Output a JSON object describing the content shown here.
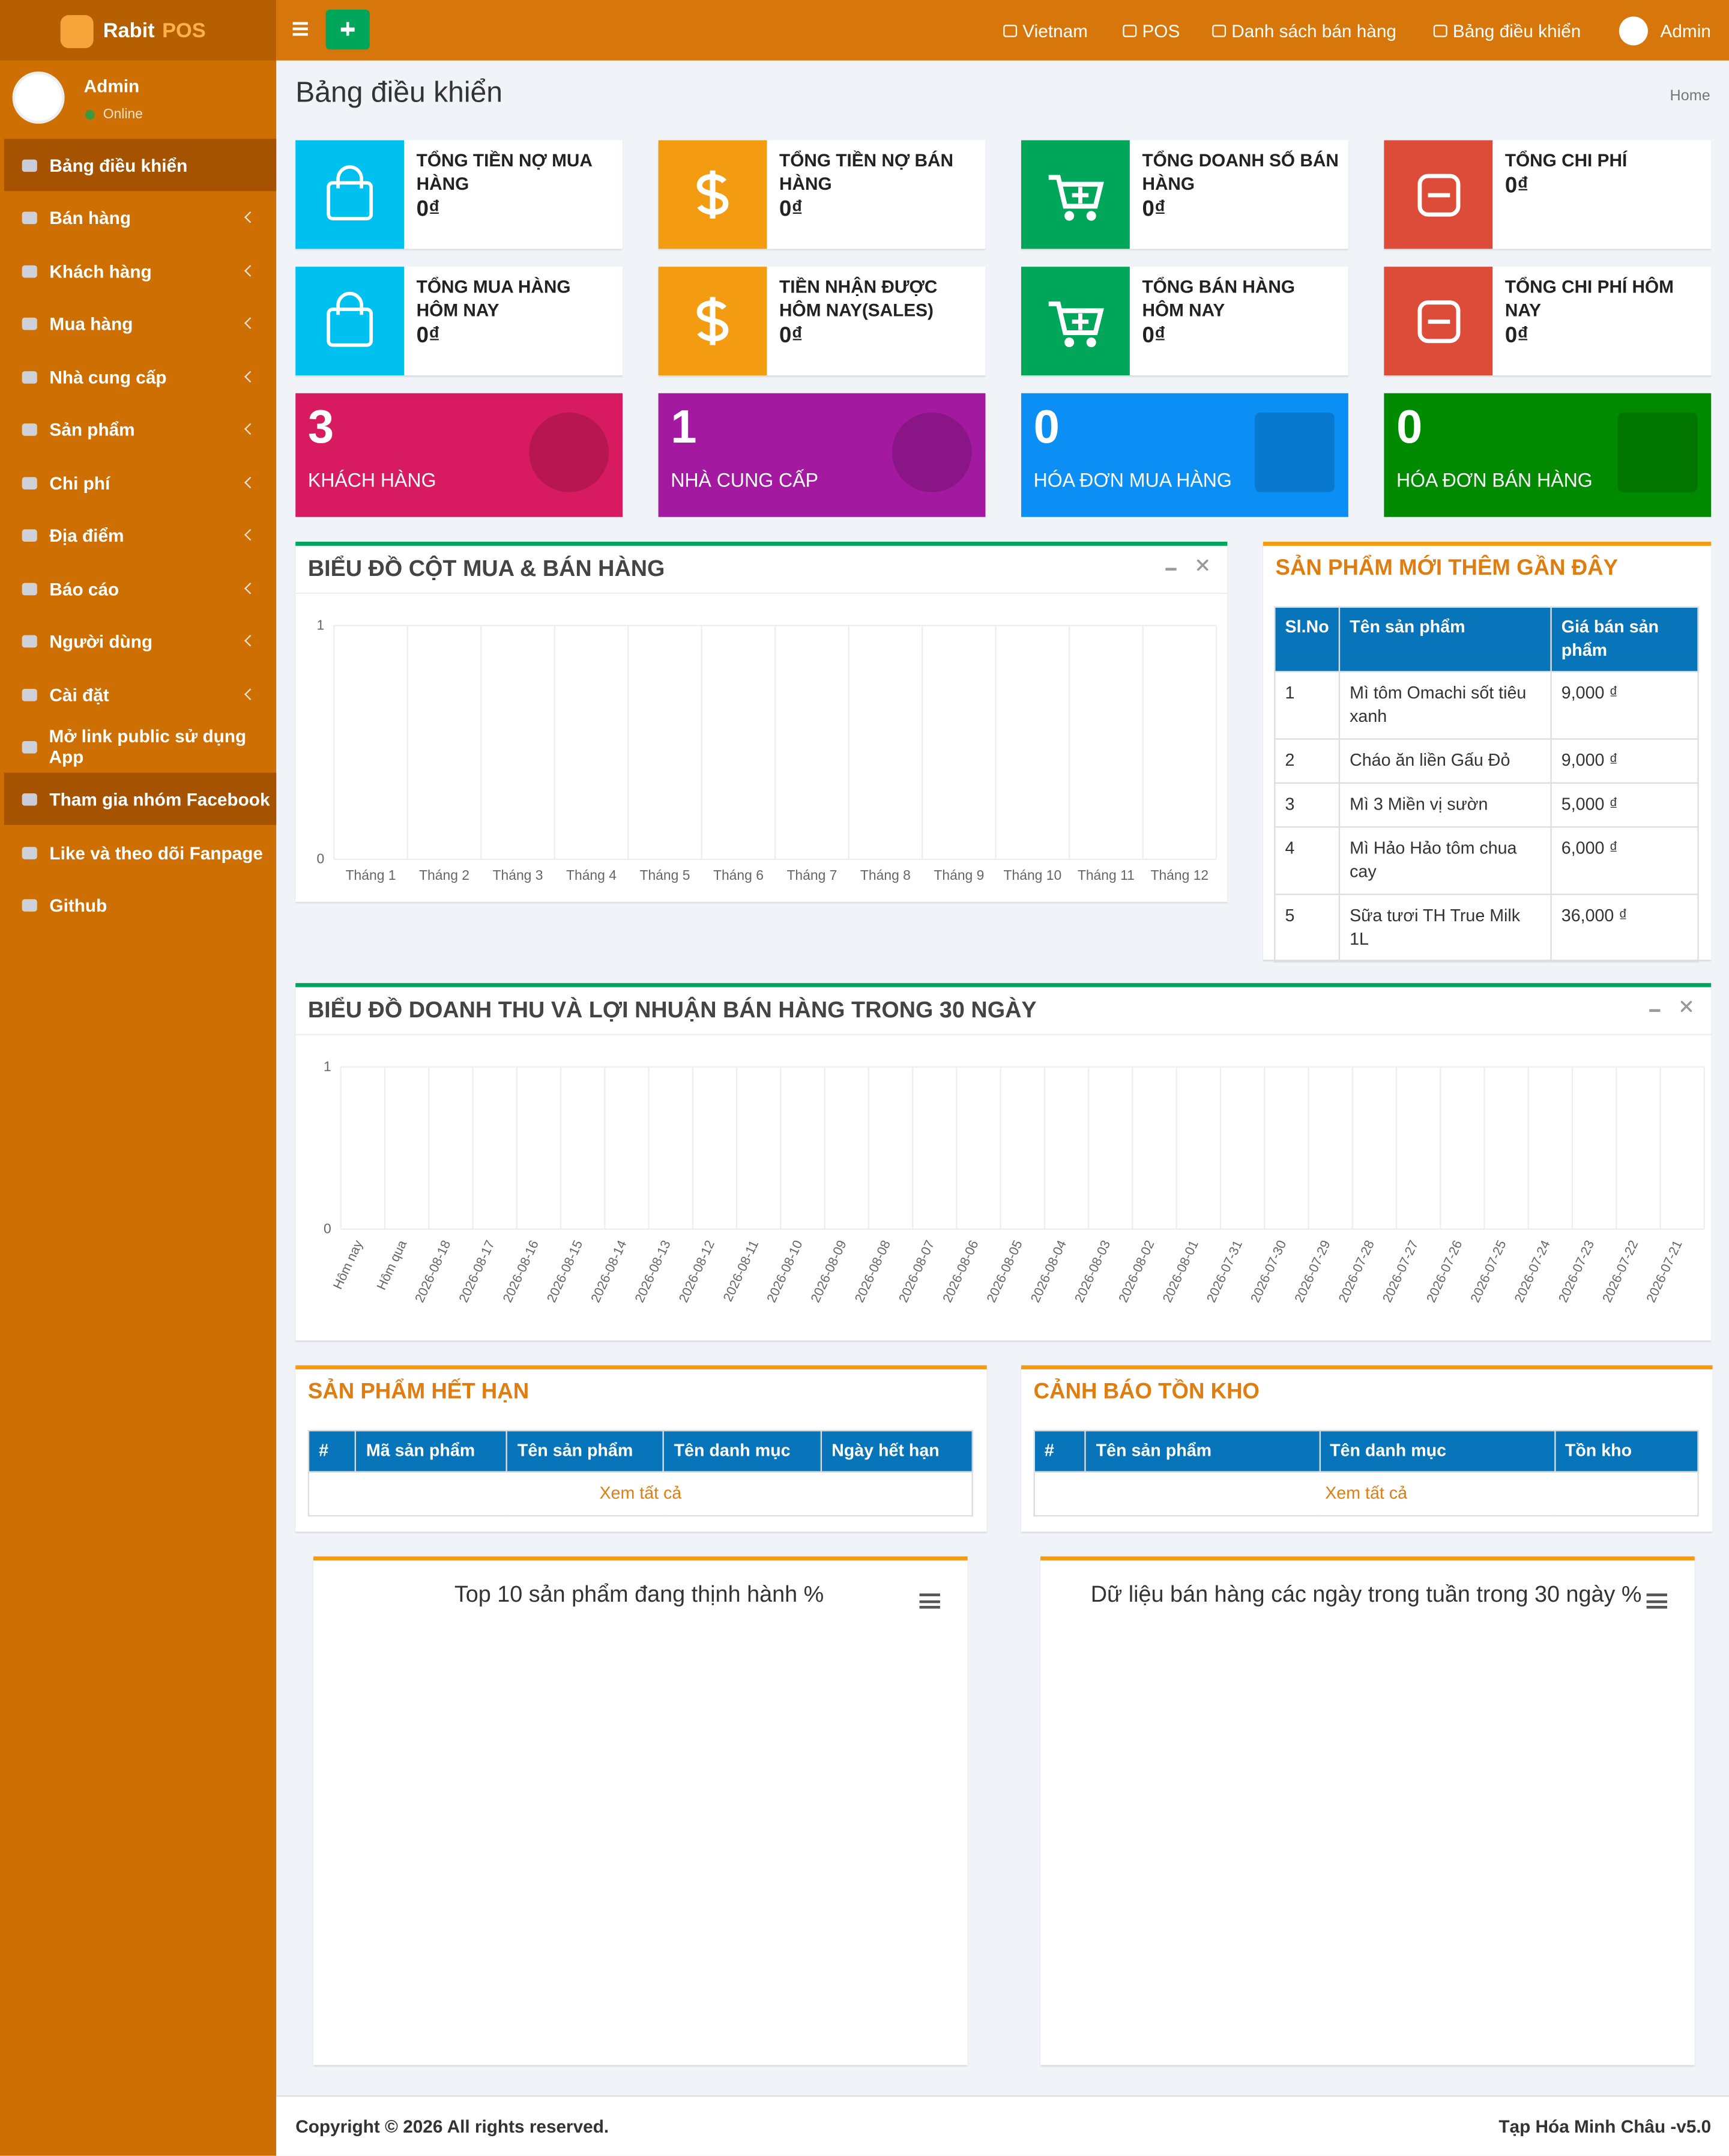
{
  "brand": {
    "name": "Rabit",
    "suffix": "POS"
  },
  "topbar": [
    "Vietnam",
    "POS",
    "Danh sách bán hàng",
    "Bảng điều khiển",
    "Admin"
  ],
  "user": {
    "name": "Admin",
    "status": "Online"
  },
  "sidebar": [
    "Bảng điều khiển",
    "Bán hàng",
    "Khách hàng",
    "Mua hàng",
    "Nhà cung cấp",
    "Sản phẩm",
    "Chi phí",
    "Địa điểm",
    "Báo cáo",
    "Người dùng",
    "Cài đặt",
    "Mở link public sử dụng App",
    "Tham gia nhóm Facebook",
    "Like và theo dõi Fanpage",
    "Github"
  ],
  "page": {
    "title": "Bảng điều khiển",
    "breadcrumb": "Home"
  },
  "info_boxes": [
    {
      "label": "TỔNG TIỀN NỢ MUA HÀNG",
      "value": "0₫"
    },
    {
      "label": "TỔNG TIỀN NỢ BÁN HÀNG",
      "value": "0₫"
    },
    {
      "label": "TỔNG DOANH SỐ BÁN HÀNG",
      "value": "0₫"
    },
    {
      "label": "TỔNG CHI PHÍ",
      "value": "0₫"
    },
    {
      "label": "TỔNG MUA HÀNG HÔM NAY",
      "value": "0₫"
    },
    {
      "label": "TIỀN NHẬN ĐƯỢC HÔM NAY(SALES)",
      "value": "0₫"
    },
    {
      "label": "TỔNG BÁN HÀNG HÔM NAY",
      "value": "0₫"
    },
    {
      "label": "TỔNG CHI PHÍ HÔM NAY",
      "value": "0₫"
    }
  ],
  "small_boxes": [
    {
      "value": 3,
      "label": "KHÁCH HÀNG"
    },
    {
      "value": 1,
      "label": "NHÀ CUNG CẤP"
    },
    {
      "value": 0,
      "label": "HÓA ĐƠN MUA HÀNG"
    },
    {
      "value": 0,
      "label": "HÓA ĐƠN BÁN HÀNG"
    }
  ],
  "bar_chart": {
    "type": "bar",
    "title": "BIỂU ĐỒ CỘT MUA & BÁN HÀNG",
    "categories": [
      "Tháng 1",
      "Tháng 2",
      "Tháng 3",
      "Tháng 4",
      "Tháng 5",
      "Tháng 6",
      "Tháng 7",
      "Tháng 8",
      "Tháng 9",
      "Tháng 10",
      "Tháng 11",
      "Tháng 12"
    ],
    "values": [
      0,
      0,
      0,
      0,
      0,
      0,
      0,
      0,
      0,
      0,
      0,
      0
    ],
    "color": "#00a65a",
    "ylim": [
      0,
      1
    ],
    "yticks": [
      0,
      1
    ]
  },
  "recent_products": {
    "title": "SẢN PHẨM MỚI THÊM GẦN ĐÂY",
    "columns": [
      "Sl.No",
      "Tên sản phẩm",
      "Giá bán sản phẩm"
    ],
    "rows": [
      [
        "1",
        "Mì tôm Omachi sốt tiêu xanh",
        "9,000 ₫"
      ],
      [
        "2",
        "Cháo ăn liền Gấu Đỏ",
        "9,000 ₫"
      ],
      [
        "3",
        "Mì 3 Miền vị sườn",
        "5,000 ₫"
      ],
      [
        "4",
        "Mì Hảo Hảo tôm chua cay",
        "6,000 ₫"
      ],
      [
        "5",
        "Sữa tươi TH True Milk 1L",
        "36,000 ₫"
      ]
    ]
  },
  "line_chart": {
    "type": "bar",
    "title": "BIỂU ĐỒ DOANH THU VÀ LỢI NHUẬN BÁN HÀNG TRONG 30 NGÀY",
    "categories": [
      "Hôm nay",
      "Hôm qua",
      "2026-08-18",
      "2026-08-17",
      "2026-08-16",
      "2026-08-15",
      "2026-08-14",
      "2026-08-13",
      "2026-08-12",
      "2026-08-11",
      "2026-08-10",
      "2026-08-09",
      "2026-08-08",
      "2026-08-07",
      "2026-08-06",
      "2026-08-05",
      "2026-08-04",
      "2026-08-03",
      "2026-08-02",
      "2026-08-01",
      "2026-07-31",
      "2026-07-30",
      "2026-07-29",
      "2026-07-28",
      "2026-07-27",
      "2026-07-26",
      "2026-07-25",
      "2026-07-24",
      "2026-07-23",
      "2026-07-22",
      "2026-07-21"
    ],
    "values": [
      0,
      0,
      0,
      0,
      0,
      0,
      0,
      0,
      0,
      0,
      0,
      0,
      0,
      0,
      0,
      0,
      0,
      0,
      0,
      0,
      0,
      0,
      0,
      0,
      0,
      0,
      0,
      0,
      0,
      0,
      0
    ],
    "color": "#00a65a",
    "ylim": [
      0,
      1
    ],
    "yticks": [
      0,
      1
    ]
  },
  "expired": {
    "title": "SẢN PHẨM HẾT HẠN",
    "columns": [
      "#",
      "Mã sản phẩm",
      "Tên sản phẩm",
      "Tên danh mục",
      "Ngày hết hạn"
    ],
    "link": "Xem tất cả"
  },
  "stock": {
    "title": "CẢNH BÁO TỒN KHO",
    "columns": [
      "#",
      "Tên sản phẩm",
      "Tên danh mục",
      "Tồn kho"
    ],
    "link": "Xem tất cả"
  },
  "top10": {
    "title": "Top 10 sản phẩm đang thịnh hành %"
  },
  "weekday": {
    "title": "Dữ liệu bán hàng các ngày trong tuần trong 30 ngày %"
  },
  "footer": {
    "left": "Copyright © 2026 All rights reserved.",
    "right": "Tạp Hóa Minh Châu -v5.0"
  }
}
